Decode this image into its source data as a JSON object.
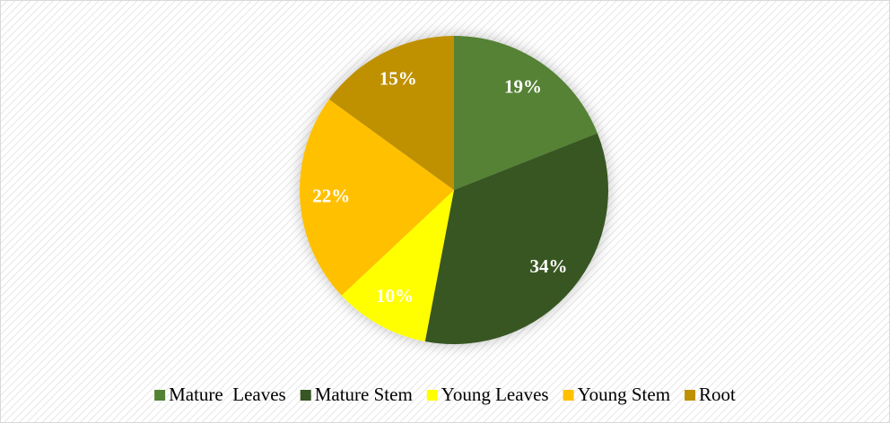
{
  "chart_data": {
    "type": "pie",
    "categories": [
      "Mature  Leaves",
      "Mature Stem",
      "Young Leaves",
      "Young Stem",
      "Root"
    ],
    "values": [
      19,
      34,
      10,
      22,
      15
    ],
    "value_labels": [
      "19%",
      "34%",
      "10%",
      "22%",
      "15%"
    ],
    "colors": [
      "#548235",
      "#375623",
      "#ffff00",
      "#ffc000",
      "#bf9000"
    ],
    "legend": "bottom"
  }
}
